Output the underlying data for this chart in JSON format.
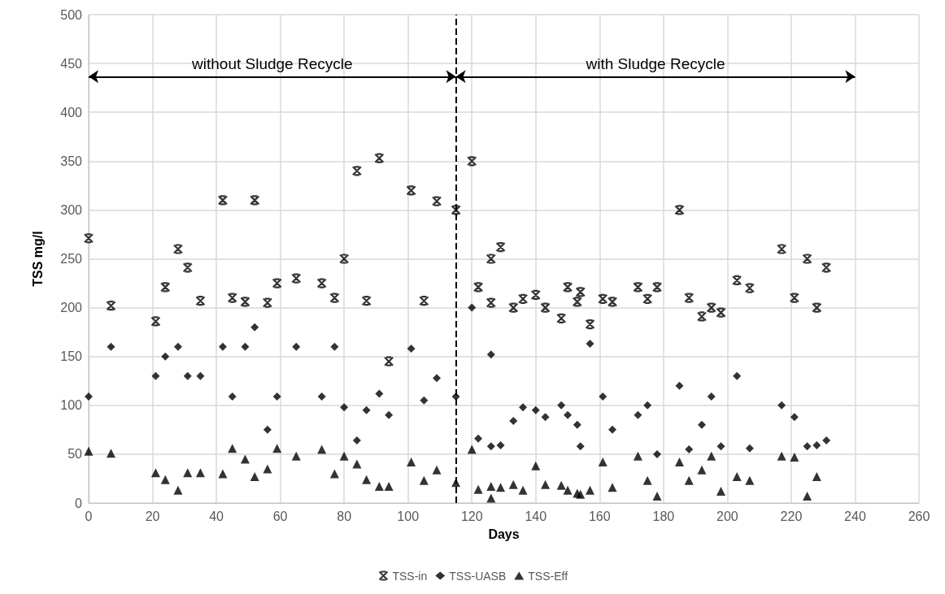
{
  "chart_data": {
    "type": "scatter",
    "xlabel": "Days",
    "ylabel": "TSS mg/l",
    "xlim": [
      0,
      260
    ],
    "xticks": [
      0,
      20,
      40,
      60,
      80,
      100,
      120,
      140,
      160,
      180,
      200,
      220,
      240,
      260
    ],
    "ylim": [
      0,
      500
    ],
    "yticks": [
      0,
      50,
      100,
      150,
      200,
      250,
      300,
      350,
      400,
      450,
      500
    ],
    "grid": true,
    "legend": "bottom",
    "series": [
      {
        "name": "TSS-in",
        "color": "#000000",
        "marker": "cross",
        "x": [
          0,
          7,
          21,
          24,
          28,
          31,
          35,
          42,
          45,
          49,
          52,
          56,
          59,
          65,
          73,
          77,
          80,
          84,
          87,
          91,
          94,
          101,
          105,
          109,
          115,
          120,
          122,
          126,
          126,
          129,
          133,
          136,
          140,
          143,
          148,
          150,
          153,
          154,
          157,
          161,
          164,
          172,
          175,
          178,
          185,
          188,
          192,
          195,
          198,
          203,
          207,
          217,
          221,
          225,
          228,
          231
        ],
        "values": [
          271,
          202,
          186,
          221,
          260,
          241,
          207,
          310,
          210,
          206,
          310,
          205,
          225,
          230,
          225,
          210,
          250,
          340,
          207,
          353,
          145,
          320,
          207,
          309,
          300,
          350,
          221,
          250,
          205,
          262,
          200,
          209,
          213,
          200,
          189,
          221,
          206,
          216,
          183,
          209,
          206,
          221,
          209,
          221,
          300,
          210,
          191,
          200,
          195,
          228,
          220,
          260,
          210,
          250,
          200,
          241
        ]
      },
      {
        "name": "TSS-UASB",
        "color": "#000000",
        "marker": "diamond",
        "x": [
          0,
          7,
          21,
          24,
          28,
          31,
          35,
          42,
          45,
          49,
          52,
          56,
          59,
          65,
          73,
          77,
          80,
          84,
          87,
          91,
          94,
          101,
          105,
          109,
          115,
          120,
          122,
          126,
          126,
          129,
          133,
          136,
          140,
          143,
          148,
          150,
          153,
          154,
          157,
          161,
          164,
          172,
          175,
          178,
          185,
          188,
          192,
          195,
          198,
          203,
          207,
          217,
          221,
          225,
          228,
          231
        ],
        "values": [
          109,
          160,
          130,
          150,
          160,
          130,
          130,
          160,
          109,
          160,
          180,
          75,
          109,
          160,
          109,
          160,
          98,
          64,
          95,
          112,
          90,
          158,
          105,
          128,
          109,
          200,
          66,
          152,
          58,
          59,
          84,
          98,
          95,
          88,
          100,
          90,
          80,
          58,
          163,
          109,
          75,
          90,
          100,
          50,
          120,
          55,
          80,
          109,
          58,
          130,
          56,
          100,
          88,
          58,
          59,
          64
        ]
      },
      {
        "name": "TSS-Eff",
        "color": "#000000",
        "marker": "triangle",
        "x": [
          0,
          7,
          21,
          24,
          28,
          31,
          35,
          42,
          45,
          49,
          52,
          56,
          59,
          65,
          73,
          77,
          80,
          84,
          87,
          91,
          94,
          101,
          105,
          109,
          115,
          120,
          122,
          126,
          126,
          129,
          133,
          136,
          140,
          143,
          148,
          150,
          153,
          154,
          157,
          161,
          164,
          172,
          175,
          178,
          185,
          188,
          192,
          195,
          198,
          203,
          207,
          217,
          221,
          225,
          228
        ],
        "values": [
          53,
          51,
          31,
          24,
          13,
          31,
          31,
          30,
          56,
          45,
          27,
          35,
          56,
          48,
          55,
          30,
          48,
          40,
          24,
          17,
          17,
          42,
          23,
          34,
          21,
          55,
          14,
          17,
          5,
          16,
          19,
          13,
          38,
          19,
          18,
          13,
          10,
          9,
          13,
          42,
          16,
          48,
          23,
          7,
          42,
          23,
          34,
          48,
          12,
          27,
          23,
          48,
          47,
          7,
          27
        ]
      }
    ],
    "ref_lines": [
      {
        "axis": "x",
        "value": 115,
        "line_style": "dashed",
        "color": "#000000"
      }
    ],
    "annotations": [
      "without Sludge Recycle",
      "with Sludge Recycle"
    ]
  }
}
